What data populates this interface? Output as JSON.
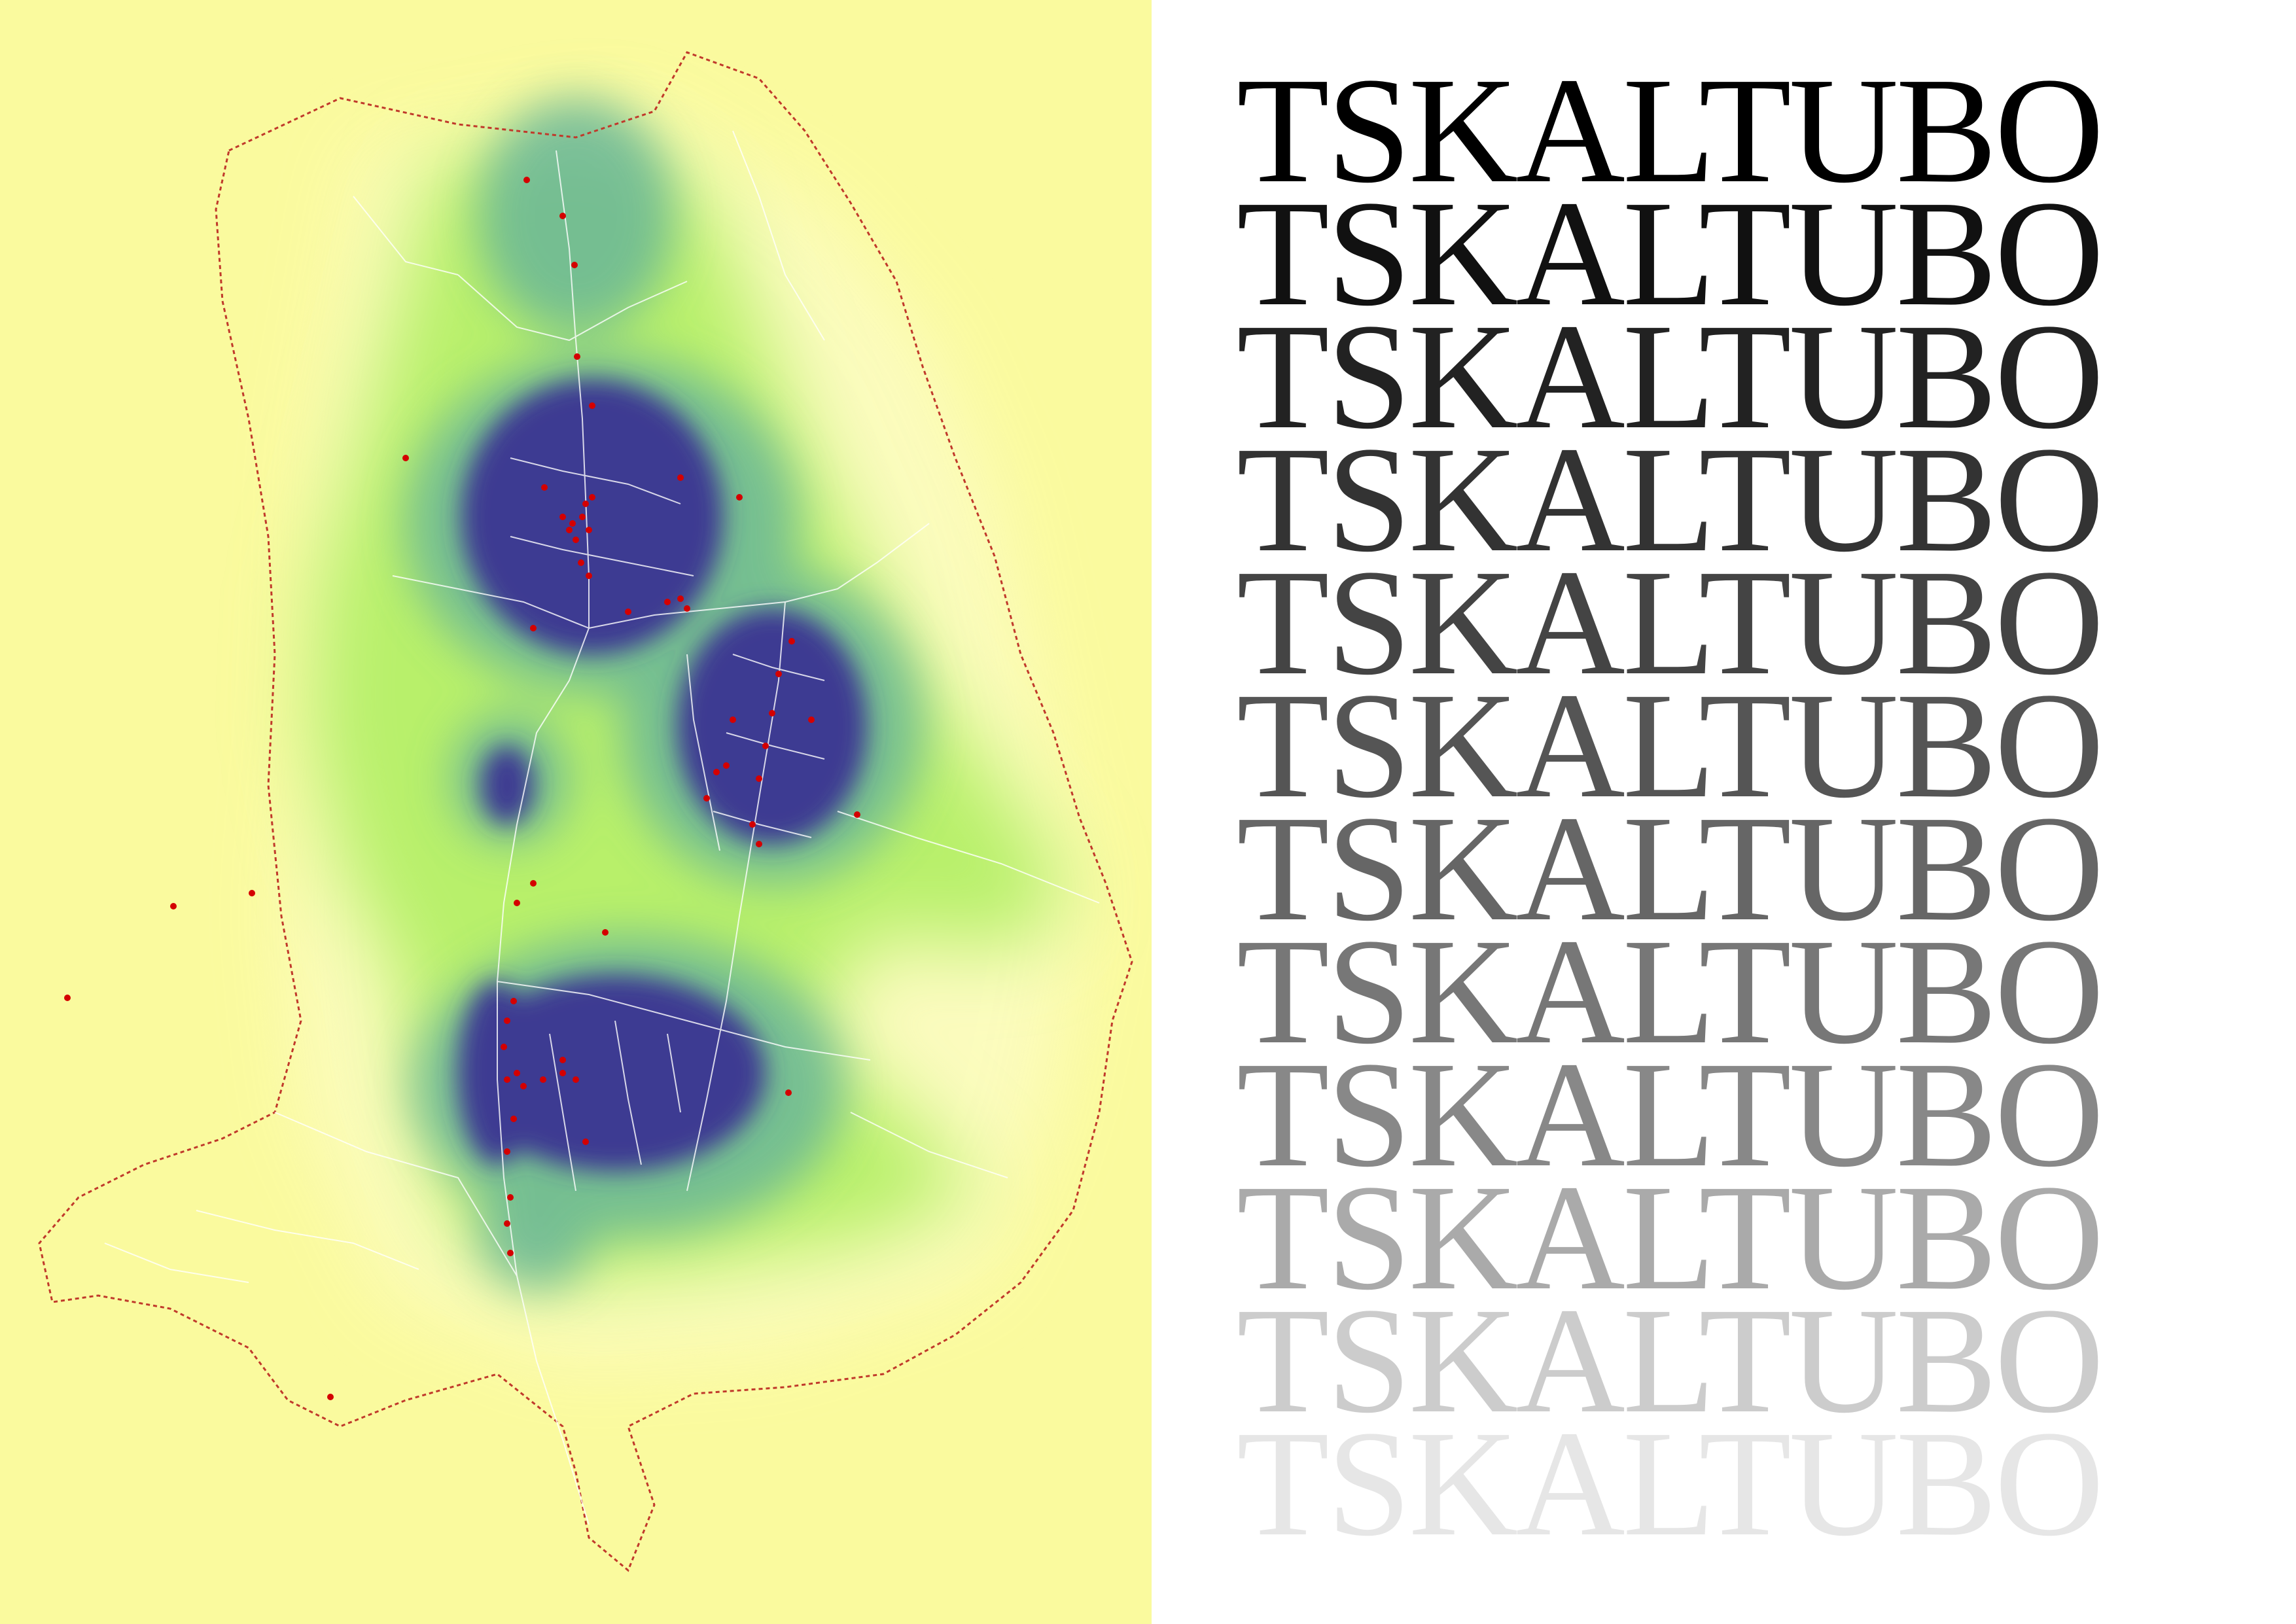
{
  "map": {
    "background_color": "#fafa9e",
    "density_colors": {
      "low": "#b8f06a",
      "mid": "#5fae9e",
      "high": "#3d3a92"
    },
    "road_color": "#ffffff",
    "boundary_color": "#c0392b",
    "point_color": "#d40000"
  },
  "title": {
    "word": "TSKALTUBO",
    "lines": [
      {
        "text": "TSKALTUBO",
        "color": "#000000"
      },
      {
        "text": "TSKALTUBO",
        "color": "#111111"
      },
      {
        "text": "TSKALTUBO",
        "color": "#222222"
      },
      {
        "text": "TSKALTUBO",
        "color": "#333333"
      },
      {
        "text": "TSKALTUBO",
        "color": "#444444"
      },
      {
        "text": "TSKALTUBO",
        "color": "#555555"
      },
      {
        "text": "TSKALTUBO",
        "color": "#666666"
      },
      {
        "text": "TSKALTUBO",
        "color": "#777777"
      },
      {
        "text": "TSKALTUBO",
        "color": "#888888"
      },
      {
        "text": "TSKALTUBO",
        "color": "#aaaaaa"
      },
      {
        "text": "TSKALTUBO",
        "color": "#cccccc"
      },
      {
        "text": "TSKALTUBO",
        "color": "#e6e6e6"
      }
    ]
  }
}
